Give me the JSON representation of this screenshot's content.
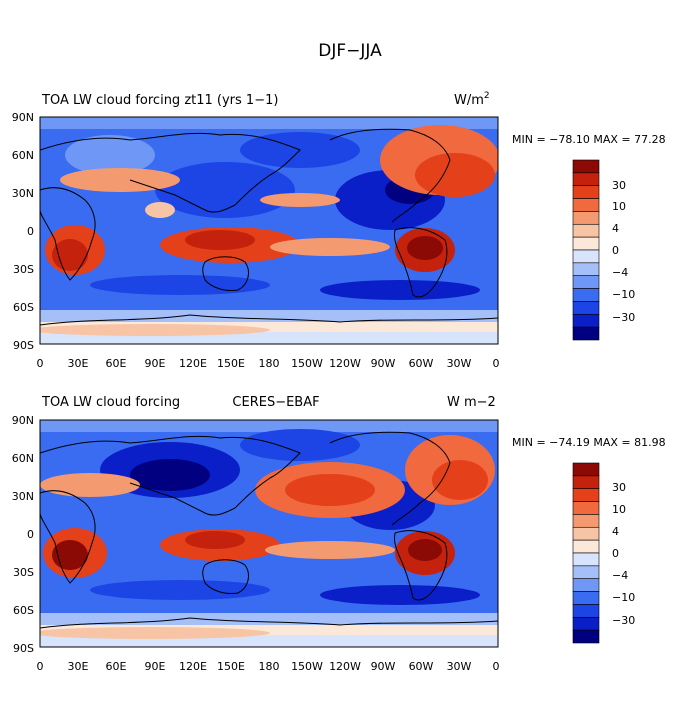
{
  "page_title": "DJF−JJA",
  "colors": {
    "scale": [
      "#000080",
      "#0a1fc7",
      "#1d44e5",
      "#3a6cf2",
      "#6f97f6",
      "#a5bff8",
      "#d7e4fb",
      "#fbe8d8",
      "#f7c4a5",
      "#f39a71",
      "#f0693f",
      "#e4401a",
      "#c4220c",
      "#8c0a06"
    ]
  },
  "axes": {
    "lat_ticks": [
      "90N",
      "60N",
      "30N",
      "0",
      "30S",
      "60S",
      "90S"
    ],
    "lon_ticks": [
      "0",
      "30E",
      "60E",
      "90E",
      "120E",
      "150E",
      "180",
      "150W",
      "120W",
      "90W",
      "60W",
      "30W",
      "0"
    ]
  },
  "colorbar_labels": [
    "30",
    "10",
    "4",
    "0",
    "−4",
    "−10",
    "−30"
  ],
  "panels": [
    {
      "title_left": "TOA LW cloud forcing zt11 (yrs 1−1)",
      "title_center": "",
      "units_main": "W/m",
      "units_sup": "2",
      "stats": "MIN = −78.10 MAX =  77.28"
    },
    {
      "title_left": "TOA LW cloud forcing",
      "title_center": "CERES−EBAF",
      "units_main": "W m−2",
      "units_sup": "",
      "stats": "MIN = −74.19 MAX =  81.98"
    }
  ]
}
